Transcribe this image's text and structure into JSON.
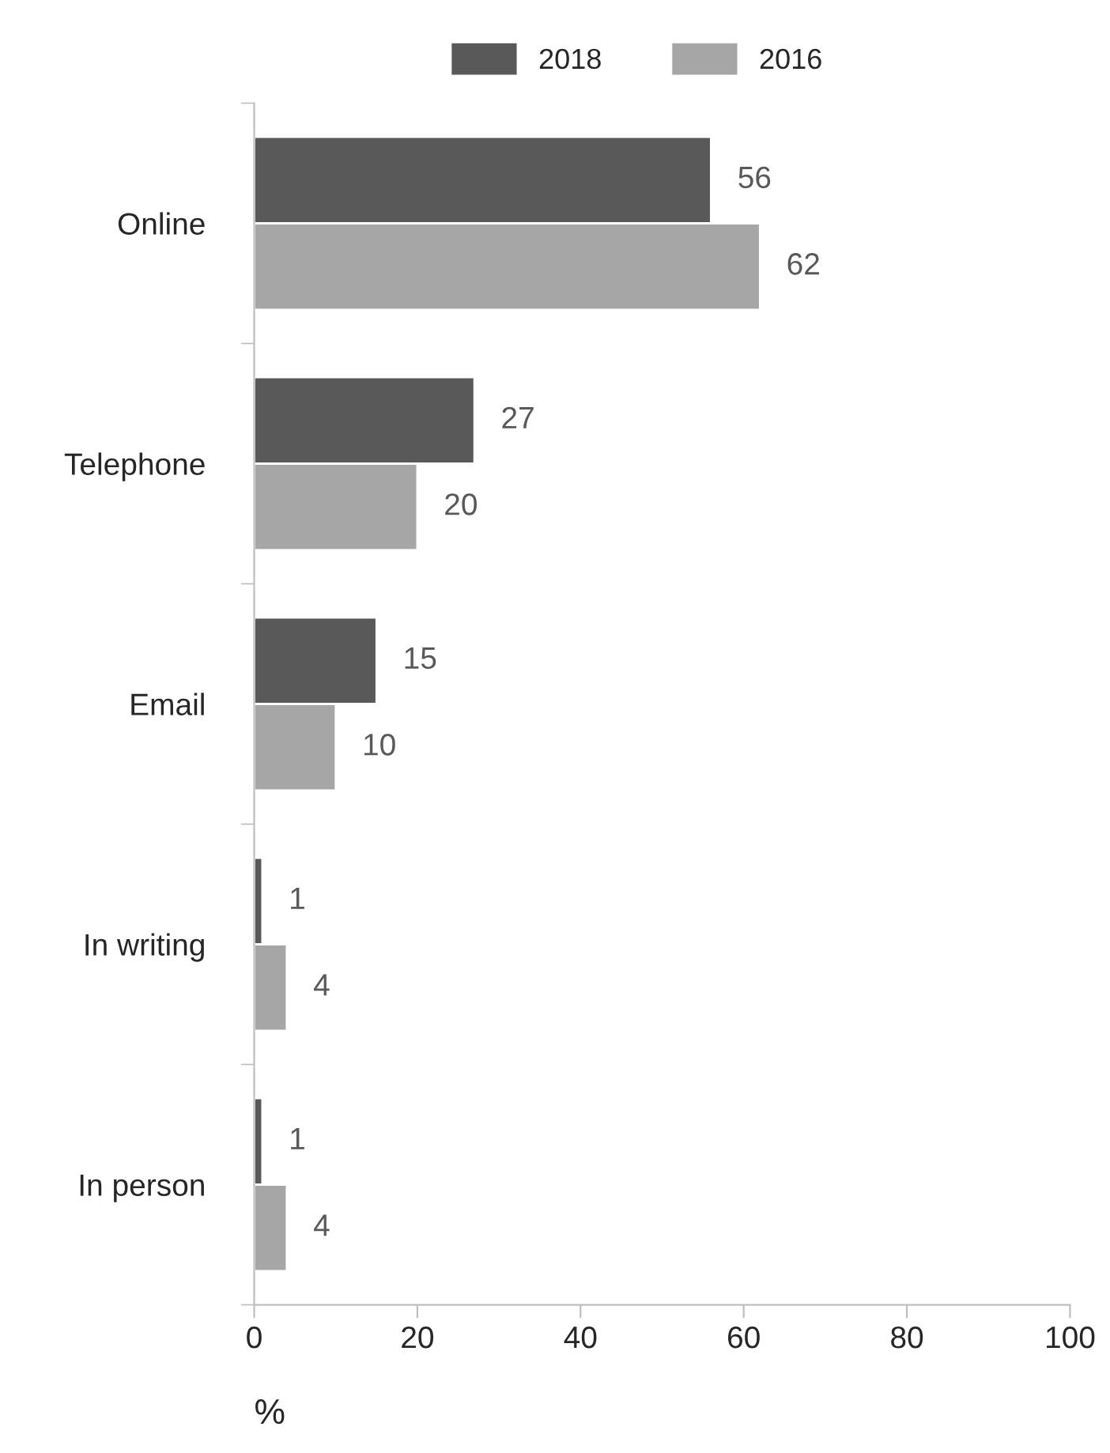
{
  "chart_data": {
    "type": "bar",
    "orientation": "horizontal",
    "categories": [
      "Online",
      "Telephone",
      "Email",
      "In writing",
      "In person"
    ],
    "series": [
      {
        "name": "2018",
        "color": "#595959",
        "values": [
          56,
          27,
          15,
          1,
          1
        ]
      },
      {
        "name": "2016",
        "color": "#a6a6a6",
        "values": [
          62,
          20,
          10,
          4,
          4
        ]
      }
    ],
    "xlim": [
      0,
      100
    ],
    "xticks": [
      0,
      20,
      40,
      60,
      80,
      100
    ],
    "xlabel": "%",
    "data_labels": true,
    "legend": "top",
    "grid": false
  }
}
